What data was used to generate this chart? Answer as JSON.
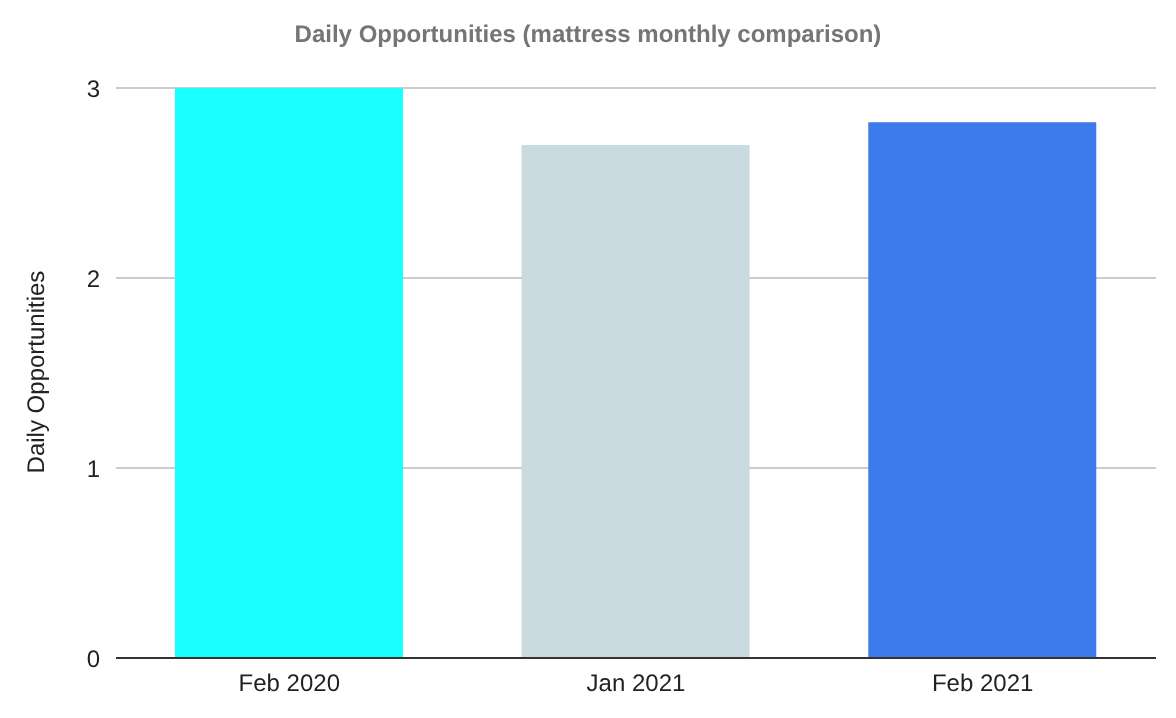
{
  "chart_data": {
    "type": "bar",
    "title": "Daily Opportunities (mattress monthly comparison)",
    "ylabel": "Daily Opportunities",
    "categories": [
      "Feb 2020",
      "Jan 2021",
      "Feb 2021"
    ],
    "values": [
      3.0,
      2.7,
      2.82
    ],
    "colors": [
      "#18ffff",
      "#c9dbe0",
      "#3d7bea"
    ],
    "ylim": [
      0,
      3
    ],
    "yticks": [
      0,
      1,
      2,
      3
    ],
    "grid": "y"
  }
}
